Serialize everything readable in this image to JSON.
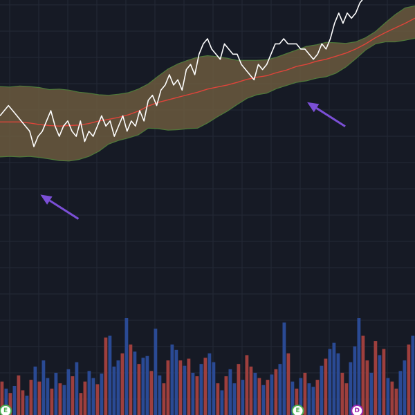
{
  "chart_data": {
    "type": "line",
    "title": "",
    "xlabel": "",
    "ylabel": "",
    "grid": true,
    "x_count": 131,
    "ylim": [
      0,
      100
    ],
    "colors": {
      "background": "#161a25",
      "grid": "#242937",
      "price": "#ffffff",
      "basis": "#e0443a",
      "band_fill": "#6b5a3e",
      "band_edge": "#4e7a3a",
      "volume_up": "#2a4a94",
      "volume_down": "#9e3f3d",
      "arrow": "#7b4fd6",
      "marker_earnings": "#4caf50",
      "marker_dividend": "#9c27b0"
    },
    "series": [
      {
        "role": "price",
        "values": [
          74,
          75,
          76,
          75,
          74,
          73,
          72,
          71,
          68,
          70,
          71,
          73,
          75,
          72,
          70,
          72,
          73,
          71,
          70,
          73,
          69,
          71,
          70,
          72,
          74,
          72,
          73,
          70,
          72,
          74,
          71,
          73,
          72,
          75,
          73,
          77,
          78,
          76,
          79,
          80,
          82,
          80,
          81,
          79,
          83,
          84,
          82,
          86,
          88,
          89,
          87,
          86,
          85,
          88,
          87,
          86,
          86,
          84,
          83,
          82,
          81,
          84,
          83,
          84,
          86,
          88,
          88,
          89,
          88,
          88,
          88,
          87,
          87,
          86,
          85,
          86,
          88,
          87,
          89,
          92,
          94,
          92,
          94,
          93,
          94,
          96,
          97,
          98,
          97,
          98,
          99,
          100,
          99,
          100,
          99,
          98,
          100,
          99,
          100
        ]
      },
      {
        "role": "basis",
        "values": [
          72.8,
          72.8,
          72.8,
          72.6,
          72.3,
          72.1,
          72.0,
          72.1,
          72.2,
          72.5,
          73.0,
          73.3,
          73.7,
          74.2,
          74.9,
          75.9,
          76.6,
          77.1,
          77.6,
          78.1,
          78.6,
          79.2,
          79.6,
          80.0,
          80.5,
          81.1,
          81.5,
          81.8,
          82.4,
          82.9,
          83.6,
          84.0,
          84.6,
          85.0,
          85.6,
          86.2,
          87.0,
          88.0,
          89.2,
          90.2,
          91.1,
          92.0,
          93.0
        ]
      },
      {
        "role": "band_upper",
        "values": [
          79.7,
          79.6,
          79.8,
          79.7,
          79.5,
          79.1,
          79.2,
          79.0,
          78.6,
          78.4,
          78.1,
          78.0,
          78.2,
          78.5,
          79.2,
          80.2,
          81.7,
          83.1,
          84.1,
          84.8,
          85.4,
          85.7,
          85.5,
          85.2,
          84.8,
          84.8,
          84.8,
          84.9,
          85.4,
          86.1,
          86.8,
          87.5,
          87.8,
          88.3,
          88.2,
          88.1,
          88.4,
          89.2,
          90.4,
          92.1,
          93.7,
          95.0,
          95.4
        ]
      },
      {
        "role": "band_lower",
        "values": [
          66.0,
          66.1,
          66.0,
          66.1,
          65.9,
          65.6,
          65.3,
          65.2,
          65.5,
          66.1,
          67.1,
          68.5,
          69.2,
          69.7,
          70.3,
          71.6,
          71.5,
          71.2,
          71.3,
          71.5,
          71.6,
          72.6,
          73.8,
          74.9,
          76.2,
          77.4,
          78.1,
          78.4,
          79.3,
          79.9,
          80.5,
          80.8,
          81.3,
          81.6,
          82.3,
          83.5,
          85.1,
          86.8,
          88.0,
          88.4,
          88.4,
          88.7,
          89.1
        ]
      },
      {
        "role": "volume",
        "values": [
          38,
          30,
          25,
          33,
          45,
          28,
          22,
          40,
          55,
          38,
          62,
          42,
          30,
          48,
          36,
          34,
          52,
          44,
          60,
          25,
          38,
          50,
          42,
          35,
          47,
          88,
          90,
          55,
          62,
          70,
          110,
          80,
          72,
          58,
          65,
          67,
          50,
          98,
          45,
          36,
          62,
          80,
          74,
          62,
          56,
          64,
          48,
          44,
          58,
          65,
          70,
          60,
          36,
          28,
          44,
          52,
          36,
          58,
          40,
          68,
          55,
          48,
          42,
          34,
          40,
          46,
          52,
          58,
          105,
          70,
          38,
          30,
          42,
          48,
          36,
          32,
          40,
          56,
          64,
          75,
          82,
          70,
          48,
          36,
          60,
          78,
          110,
          90,
          62,
          48,
          84,
          68,
          75,
          42,
          38,
          30,
          50,
          62,
          80,
          90
        ]
      },
      {
        "role": "volume_direction",
        "values": [
          0,
          1,
          0,
          1,
          0,
          0,
          1,
          0,
          1,
          0,
          1,
          1,
          0,
          1,
          0,
          1,
          1,
          0,
          1,
          0,
          0,
          1,
          1,
          0,
          1,
          0,
          1,
          1,
          1,
          0,
          1,
          0,
          1,
          0,
          1,
          1,
          0,
          1,
          1,
          0,
          0,
          1,
          1,
          0,
          1,
          0,
          1,
          0,
          1,
          0,
          1,
          1,
          0,
          1,
          0,
          1,
          1,
          0,
          1,
          0,
          0,
          1,
          0,
          1,
          0,
          1,
          0,
          1,
          1,
          0,
          1,
          0,
          1,
          0,
          1,
          1,
          0,
          1,
          0,
          1,
          1,
          1,
          0,
          0,
          1,
          1,
          1,
          0,
          0,
          1,
          0,
          1,
          0,
          1,
          0,
          0,
          1,
          1,
          0,
          1
        ]
      }
    ],
    "annotations": {
      "arrows": [
        {
          "x": 3,
          "y": 60
        },
        {
          "x": 66,
          "y": 78
        }
      ],
      "event_markers": [
        {
          "label": "E",
          "kind": "earnings",
          "x": 1
        },
        {
          "label": "E",
          "kind": "earnings",
          "x": 70
        },
        {
          "label": "D",
          "kind": "dividend",
          "x": 84
        }
      ]
    }
  }
}
